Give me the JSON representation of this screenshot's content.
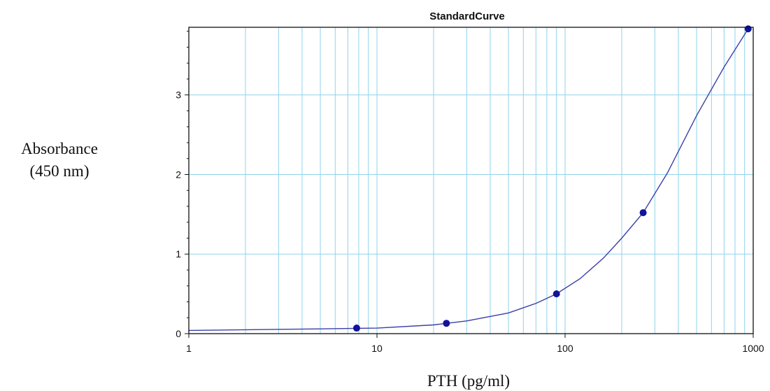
{
  "chart_data": {
    "type": "scatter",
    "title": "StandardCurve",
    "xlabel": "PTH (pg/ml)",
    "ylabel_lines": [
      "Absorbance",
      "(450 nm)"
    ],
    "x_scale": "log",
    "xlim": [
      1,
      1000
    ],
    "ylim": [
      0,
      3.85
    ],
    "x_ticks": [
      1,
      10,
      100,
      1000
    ],
    "x_tick_labels": [
      "1",
      "10",
      "100",
      "1000"
    ],
    "y_ticks": [
      0,
      1,
      2,
      3
    ],
    "y_tick_labels": [
      "0",
      "1",
      "2",
      "3"
    ],
    "grid": true,
    "series": [
      {
        "x": [
          7.8,
          23.4,
          90,
          260,
          940
        ],
        "y": [
          0.07,
          0.13,
          0.5,
          1.52,
          3.83
        ]
      }
    ],
    "fit_curve": {
      "x": [
        1,
        5,
        10,
        20,
        30,
        50,
        70,
        90,
        120,
        160,
        200,
        260,
        350,
        500,
        700,
        940
      ],
      "y": [
        0.04,
        0.06,
        0.07,
        0.11,
        0.16,
        0.26,
        0.38,
        0.5,
        0.69,
        0.95,
        1.2,
        1.52,
        2.02,
        2.74,
        3.35,
        3.83
      ]
    },
    "colors": {
      "grid": "#8fd3ea",
      "curve": "#3a3fa8",
      "points": "#12129a"
    }
  }
}
